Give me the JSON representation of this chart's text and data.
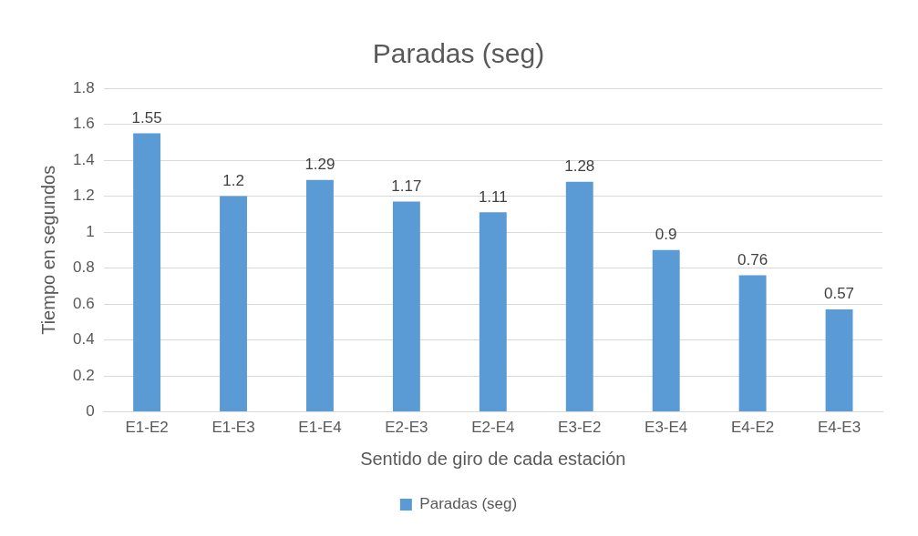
{
  "chart_data": {
    "type": "bar",
    "title": "Paradas (seg)",
    "xlabel": "Sentido de giro de cada estación",
    "ylabel": "Tiempo en segundos",
    "categories": [
      "E1-E2",
      "E1-E3",
      "E1-E4",
      "E2-E3",
      "E2-E4",
      "E3-E2",
      "E3-E4",
      "E4-E2",
      "E4-E3"
    ],
    "series": [
      {
        "name": "Paradas (seg)",
        "color": "#5b9bd5",
        "values": [
          1.55,
          1.2,
          1.29,
          1.17,
          1.11,
          1.28,
          0.9,
          0.76,
          0.57
        ]
      }
    ],
    "ylim": [
      0,
      1.8
    ],
    "yticks": [
      0,
      0.2,
      0.4,
      0.6,
      0.8,
      1,
      1.2,
      1.4,
      1.6,
      1.8
    ],
    "grid": "y",
    "legend": "bottom",
    "data_labels": true
  }
}
